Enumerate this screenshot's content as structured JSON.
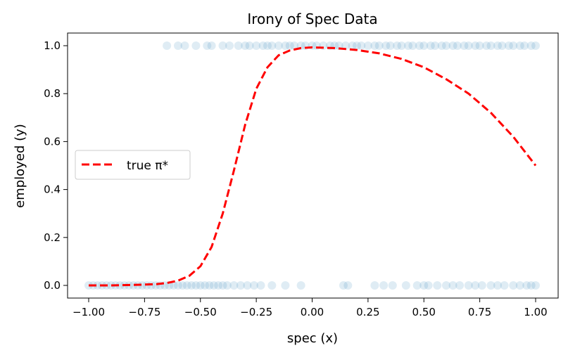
{
  "chart_data": {
    "type": "scatter",
    "title": "Irony of Spec Data",
    "xlabel": "spec (x)",
    "ylabel": "employed (y)",
    "xlim": [
      -1.1,
      1.1
    ],
    "ylim": [
      -0.05,
      1.05
    ],
    "xticks": [
      -1.0,
      -0.75,
      -0.5,
      -0.25,
      0.0,
      0.25,
      0.5,
      0.75,
      1.0
    ],
    "xtick_labels": [
      "−1.00",
      "−0.75",
      "−0.50",
      "−0.25",
      "0.00",
      "0.25",
      "0.50",
      "0.75",
      "1.00"
    ],
    "yticks": [
      0.0,
      0.2,
      0.4,
      0.6,
      0.8,
      1.0
    ],
    "ytick_labels": [
      "0.0",
      "0.2",
      "0.4",
      "0.6",
      "0.8",
      "1.0"
    ],
    "grid": false,
    "legend": {
      "placement": "center-left",
      "entries": [
        "true π*"
      ]
    },
    "scatter_color": "#1f77b4",
    "scatter_points": {
      "y1_x": [
        -0.65,
        -0.6,
        -0.57,
        -0.52,
        -0.47,
        -0.45,
        -0.4,
        -0.37,
        -0.33,
        -0.3,
        -0.28,
        -0.25,
        -0.22,
        -0.2,
        -0.18,
        -0.15,
        -0.12,
        -0.1,
        -0.08,
        -0.05,
        -0.03,
        0.0,
        0.02,
        0.05,
        0.08,
        0.1,
        0.12,
        0.15,
        0.18,
        0.2,
        0.22,
        0.25,
        0.28,
        0.3,
        0.33,
        0.35,
        0.38,
        0.4,
        0.43,
        0.45,
        0.48,
        0.5,
        0.53,
        0.55,
        0.58,
        0.6,
        0.63,
        0.65,
        0.68,
        0.7,
        0.73,
        0.75,
        0.78,
        0.8,
        0.83,
        0.85,
        0.88,
        0.9,
        0.93,
        0.95,
        0.98,
        1.0
      ],
      "y0_x": [
        -1.0,
        -0.98,
        -0.96,
        -0.94,
        -0.92,
        -0.9,
        -0.88,
        -0.86,
        -0.84,
        -0.82,
        -0.8,
        -0.78,
        -0.76,
        -0.74,
        -0.72,
        -0.7,
        -0.68,
        -0.66,
        -0.64,
        -0.62,
        -0.6,
        -0.58,
        -0.56,
        -0.54,
        -0.52,
        -0.5,
        -0.48,
        -0.46,
        -0.44,
        -0.42,
        -0.4,
        -0.38,
        -0.35,
        -0.32,
        -0.29,
        -0.26,
        -0.23,
        -0.18,
        -0.12,
        -0.05,
        0.14,
        0.16,
        0.28,
        0.32,
        0.36,
        0.42,
        0.47,
        0.5,
        0.52,
        0.56,
        0.6,
        0.63,
        0.66,
        0.7,
        0.73,
        0.76,
        0.8,
        0.83,
        0.86,
        0.9,
        0.93,
        0.96,
        0.98,
        1.0
      ]
    },
    "series": [
      {
        "name": "true π*",
        "color": "#ff0000",
        "style": "dashed",
        "x": [
          -1.0,
          -0.9,
          -0.8,
          -0.7,
          -0.65,
          -0.6,
          -0.55,
          -0.5,
          -0.45,
          -0.4,
          -0.35,
          -0.3,
          -0.25,
          -0.2,
          -0.15,
          -0.1,
          -0.05,
          0.0,
          0.1,
          0.2,
          0.3,
          0.4,
          0.5,
          0.6,
          0.7,
          0.8,
          0.9,
          1.0
        ],
        "y": [
          0.0,
          0.0,
          0.002,
          0.005,
          0.01,
          0.02,
          0.04,
          0.08,
          0.16,
          0.3,
          0.48,
          0.67,
          0.82,
          0.91,
          0.96,
          0.98,
          0.99,
          0.993,
          0.99,
          0.982,
          0.968,
          0.945,
          0.91,
          0.86,
          0.8,
          0.72,
          0.62,
          0.5
        ]
      }
    ]
  }
}
